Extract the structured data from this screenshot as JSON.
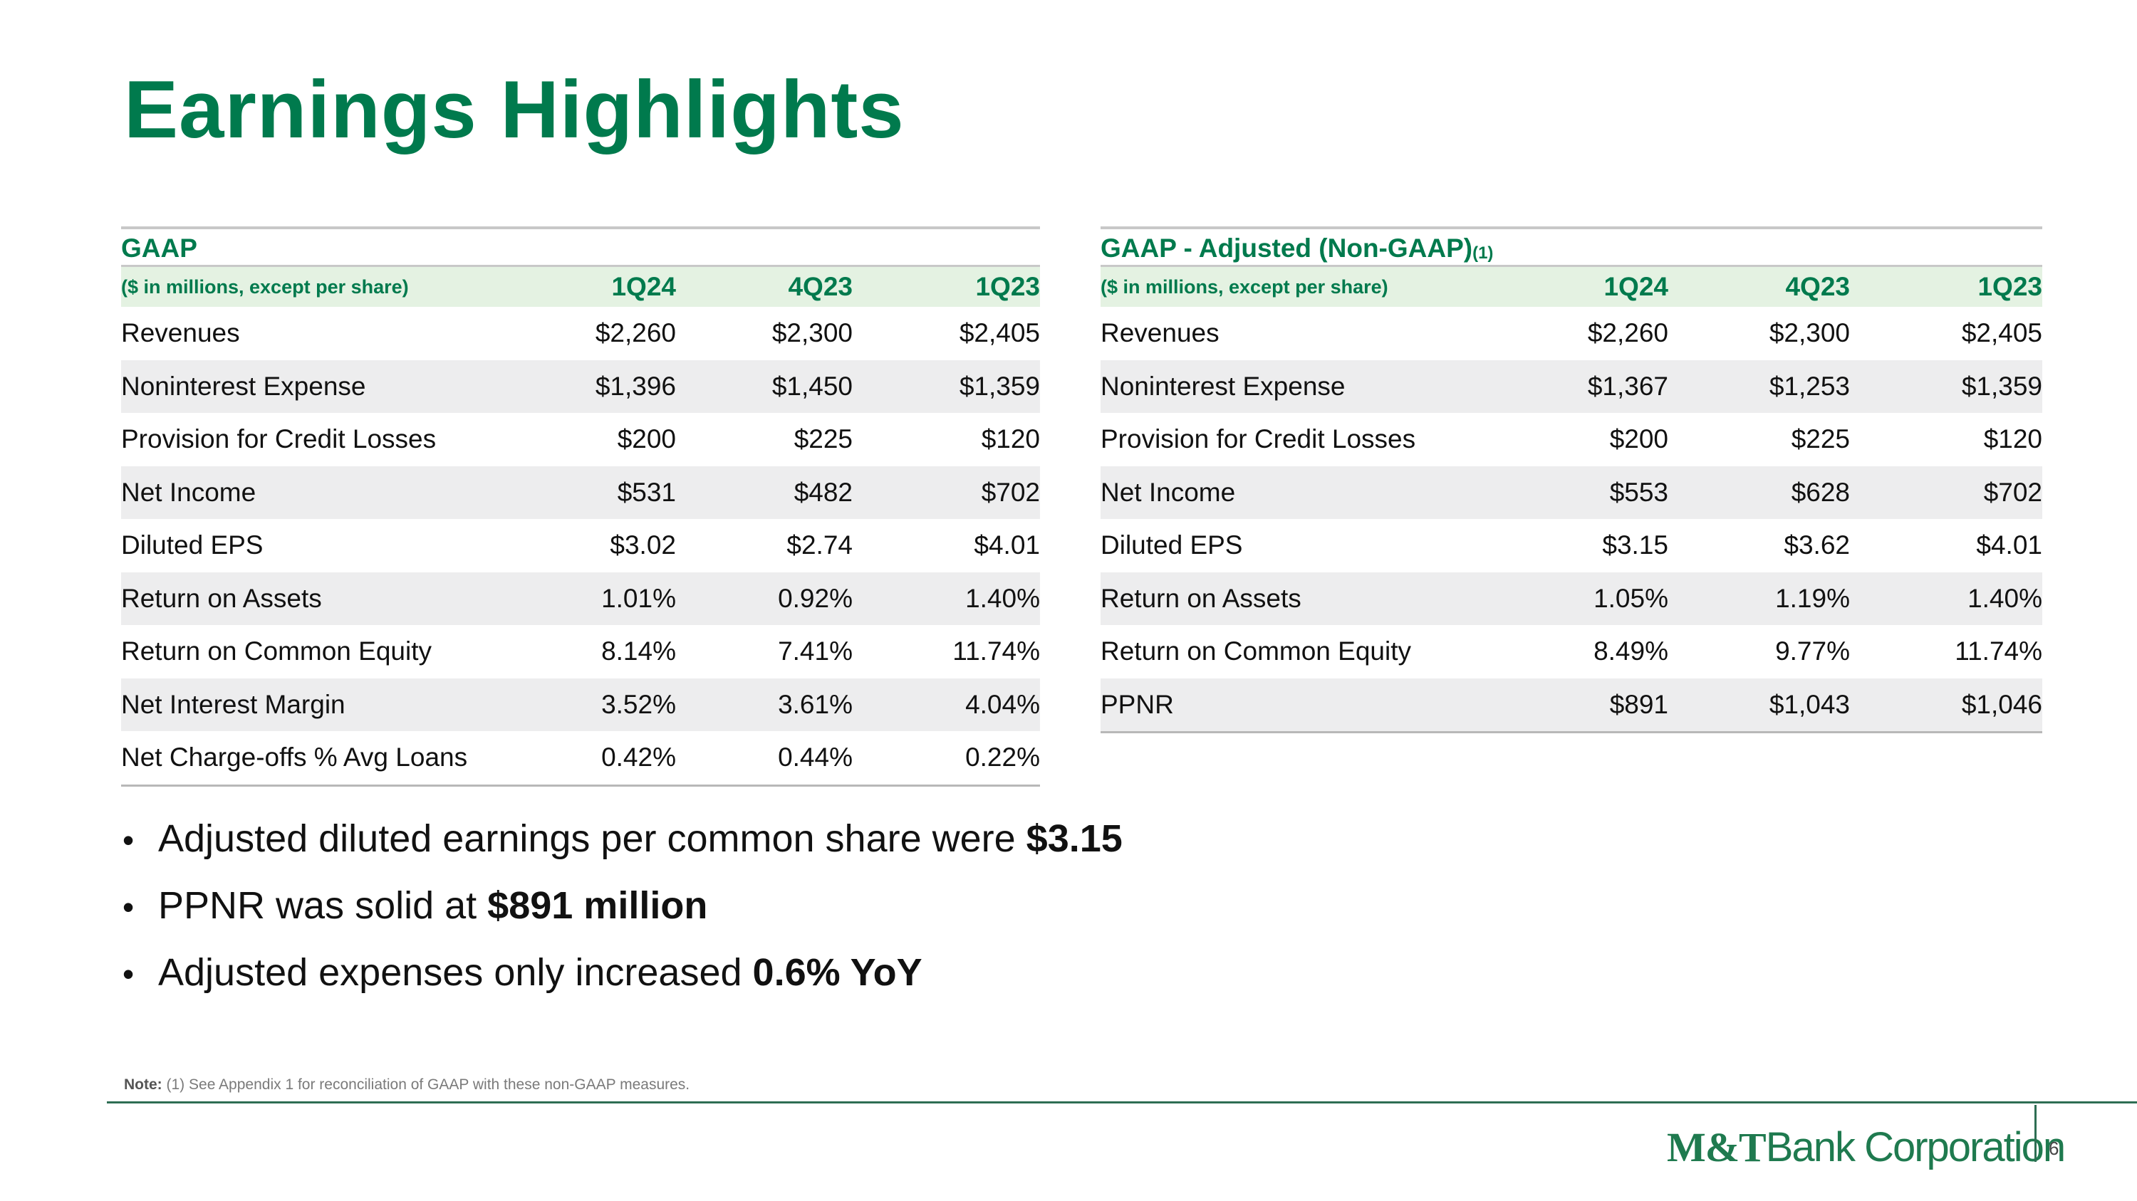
{
  "title": "Earnings Highlights",
  "gaap": {
    "heading": "GAAP",
    "subheading": "($ in millions, except per share)",
    "periods": [
      "1Q24",
      "4Q23",
      "1Q23"
    ],
    "rows": [
      {
        "label": "Revenues",
        "values": [
          "$2,260",
          "$2,300",
          "$2,405"
        ]
      },
      {
        "label": "Noninterest Expense",
        "values": [
          "$1,396",
          "$1,450",
          "$1,359"
        ]
      },
      {
        "label": "Provision for Credit Losses",
        "values": [
          "$200",
          "$225",
          "$120"
        ]
      },
      {
        "label": "Net Income",
        "values": [
          "$531",
          "$482",
          "$702"
        ]
      },
      {
        "label": "Diluted EPS",
        "values": [
          "$3.02",
          "$2.74",
          "$4.01"
        ]
      },
      {
        "label": "Return on Assets",
        "values": [
          "1.01%",
          "0.92%",
          "1.40%"
        ]
      },
      {
        "label": "Return on Common Equity",
        "values": [
          "8.14%",
          "7.41%",
          "11.74%"
        ]
      },
      {
        "label": "Net Interest Margin",
        "values": [
          "3.52%",
          "3.61%",
          "4.04%"
        ]
      },
      {
        "label": "Net Charge-offs % Avg Loans",
        "values": [
          "0.42%",
          "0.44%",
          "0.22%"
        ]
      }
    ]
  },
  "adjusted": {
    "heading": "GAAP - Adjusted (Non-GAAP)",
    "heading_sup": "(1)",
    "subheading": "($ in millions, except per share)",
    "periods": [
      "1Q24",
      "4Q23",
      "1Q23"
    ],
    "rows": [
      {
        "label": "Revenues",
        "values": [
          "$2,260",
          "$2,300",
          "$2,405"
        ]
      },
      {
        "label": "Noninterest Expense",
        "values": [
          "$1,367",
          "$1,253",
          "$1,359"
        ]
      },
      {
        "label": "Provision for Credit Losses",
        "values": [
          "$200",
          "$225",
          "$120"
        ]
      },
      {
        "label": "Net Income",
        "values": [
          "$553",
          "$628",
          "$702"
        ]
      },
      {
        "label": "Diluted EPS",
        "values": [
          "$3.15",
          "$3.62",
          "$4.01"
        ]
      },
      {
        "label": "Return on Assets",
        "values": [
          "1.05%",
          "1.19%",
          "1.40%"
        ]
      },
      {
        "label": "Return on Common Equity",
        "values": [
          "8.49%",
          "9.77%",
          "11.74%"
        ]
      },
      {
        "label": "PPNR",
        "values": [
          "$891",
          "$1,043",
          "$1,046"
        ]
      }
    ]
  },
  "bullets": [
    {
      "text": "Adjusted diluted earnings per common share were ",
      "bold": "$3.15"
    },
    {
      "text": "PPNR was solid at ",
      "bold": "$891 million"
    },
    {
      "text": "Adjusted expenses only increased ",
      "bold": "0.6% YoY"
    }
  ],
  "bullet_glyph": "•",
  "note": {
    "label": "Note:",
    "text": " (1) See Appendix 1 for reconciliation of GAAP with these non-GAAP measures."
  },
  "logo": {
    "brand": "M&T",
    "rest": "Bank Corporation"
  },
  "page_number": "6",
  "colors": {
    "brand_green": "#007a4d",
    "header_fill": "#e4f2e2",
    "row_alt": "#ededee"
  }
}
